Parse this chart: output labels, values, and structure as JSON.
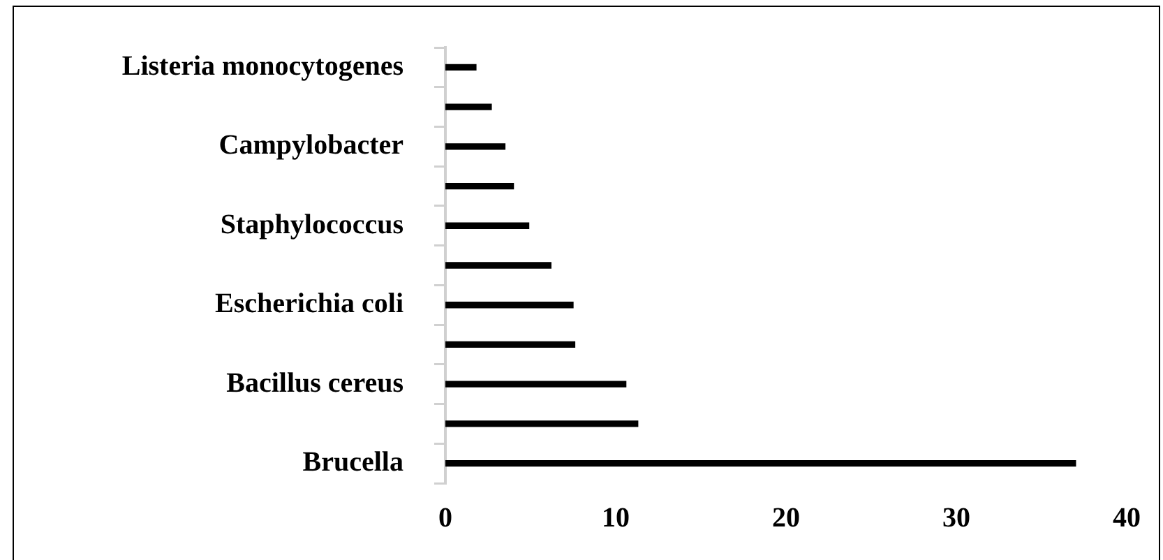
{
  "chart_data": {
    "type": "bar",
    "orientation": "horizontal",
    "categories": [
      "Listeria monocytogenes",
      null,
      "Campylobacter",
      null,
      "Staphylococcus",
      null,
      "Escherichia coli",
      null,
      "Bacillus cereus",
      null,
      "Brucella"
    ],
    "values": [
      1.8,
      2.7,
      3.5,
      4.0,
      4.9,
      6.2,
      7.5,
      7.6,
      10.6,
      11.3,
      37
    ],
    "color": "#000000",
    "xlim": [
      0,
      40
    ],
    "xticks": [
      0,
      10,
      20,
      30,
      40
    ],
    "grid": false,
    "legend": false
  }
}
